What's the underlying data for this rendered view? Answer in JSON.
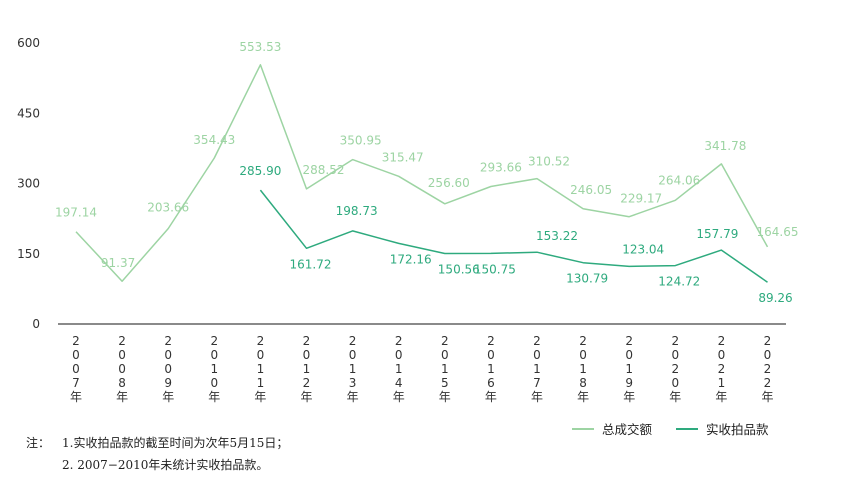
{
  "chart_data": {
    "type": "line",
    "categories": [
      "2007年",
      "2008年",
      "2009年",
      "2010年",
      "2011年",
      "2012年",
      "2013年",
      "2014年",
      "2015年",
      "2016年",
      "2017年",
      "2018年",
      "2019年",
      "2020年",
      "2021年",
      "2022年"
    ],
    "y_ticks": [
      0,
      150,
      300,
      450,
      600
    ],
    "ylim": [
      0,
      600
    ],
    "grid": false,
    "legend_position": "bottom-right",
    "series": [
      {
        "name": "总成交额",
        "color": "#9dd4a3",
        "values": [
          197.14,
          91.37,
          203.66,
          354.43,
          553.53,
          288.52,
          350.95,
          315.47,
          256.6,
          293.66,
          310.52,
          246.05,
          229.17,
          264.06,
          341.78,
          164.65
        ],
        "labels": [
          "197.14",
          "91.37",
          "203.66",
          "354.43",
          "553.53",
          "288.52",
          "350.95",
          "315.47",
          "256.60",
          "293.66",
          "310.52",
          "246.05",
          "229.17",
          "264.06",
          "341.78",
          "164.65"
        ]
      },
      {
        "name": "实收拍品款",
        "color": "#2eaa7e",
        "values": [
          null,
          null,
          null,
          null,
          285.9,
          161.72,
          198.73,
          172.16,
          150.56,
          150.75,
          153.22,
          130.79,
          123.04,
          124.72,
          157.79,
          89.26
        ],
        "labels": [
          null,
          null,
          null,
          null,
          "285.90",
          "161.72",
          "198.73",
          "172.16",
          "150.56",
          "150.75",
          "153.22",
          "130.79",
          "123.04",
          "124.72",
          "157.79",
          "89.26"
        ]
      }
    ]
  },
  "notes": {
    "prefix": "注：",
    "line1": "1.实收拍品款的截至时间为次年5月15日；",
    "line2": "2. 2007−2010年未统计实收拍品款。"
  }
}
